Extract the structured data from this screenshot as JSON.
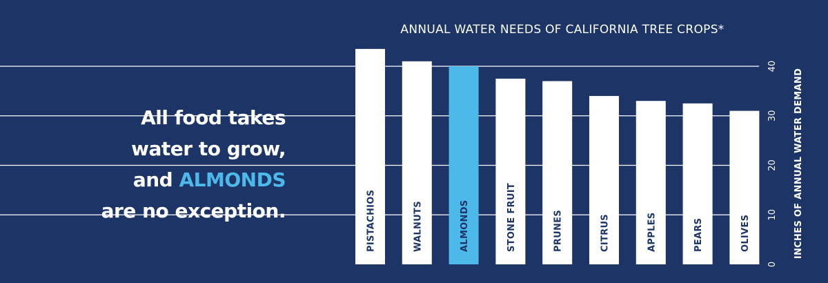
{
  "headline": {
    "line1": "All food takes",
    "line2": "water to grow,",
    "line3_prefix": "and ",
    "line3_accent": "ALMONDS",
    "line4": "are no exception."
  },
  "colors": {
    "background": "#1c3566",
    "bar": "#ffffff",
    "highlight_bar": "#4db8ea",
    "grid": "#ffffff"
  },
  "chart_data": {
    "type": "bar",
    "title": "ANNUAL WATER NEEDS OF CALIFORNIA TREE CROPS*",
    "ylabel": "INCHES OF ANNUAL WATER DEMAND",
    "categories": [
      "PISTACHIOS",
      "WALNUTS",
      "ALMONDS",
      "STONE FRUIT",
      "PRUNES",
      "CITRUS",
      "APPLES",
      "PEARS",
      "OLIVES"
    ],
    "values": [
      43.5,
      41,
      40,
      37.5,
      37,
      34,
      33,
      32.5,
      31
    ],
    "highlight": "ALMONDS",
    "ylim": [
      0,
      40
    ],
    "yticks": [
      0,
      10,
      20,
      30,
      40
    ],
    "ytick_labels": [
      "0",
      "10",
      "20",
      "30",
      "40"
    ],
    "grid": true,
    "axis_position": "right"
  }
}
